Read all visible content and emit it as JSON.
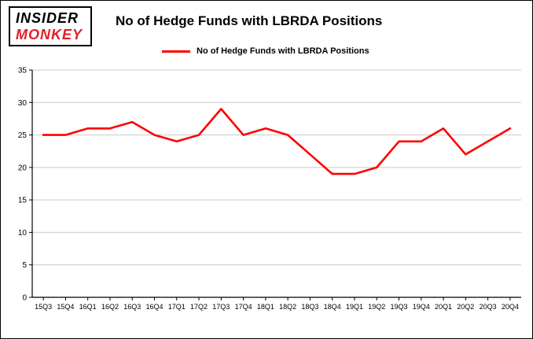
{
  "logo": {
    "line1": "INSIDER",
    "line2": "MONKEY"
  },
  "title": "No of Hedge Funds with LBRDA Positions",
  "colors": {
    "line": "#ff0000",
    "grid": "#c9c9c9",
    "axis": "#000000",
    "logo_accent": "#e31e25"
  },
  "chart_data": {
    "type": "line",
    "title": "No of Hedge Funds with LBRDA Positions",
    "categories": [
      "15Q3",
      "15Q4",
      "16Q1",
      "16Q2",
      "16Q3",
      "16Q4",
      "17Q1",
      "17Q2",
      "17Q3",
      "17Q4",
      "18Q1",
      "18Q2",
      "18Q3",
      "18Q4",
      "19Q1",
      "19Q2",
      "19Q3",
      "19Q4",
      "20Q1",
      "20Q2",
      "20Q3",
      "20Q4"
    ],
    "series": [
      {
        "name": "No of Hedge Funds with LBRDA Positions",
        "values": [
          25,
          25,
          26,
          26,
          27,
          25,
          24,
          25,
          29,
          25,
          26,
          25,
          22,
          19,
          19,
          20,
          24,
          24,
          26,
          22,
          24,
          26
        ]
      }
    ],
    "xlabel": "",
    "ylabel": "",
    "ylim": [
      0,
      35
    ],
    "ytick_step": 5,
    "yticks": [
      0,
      5,
      10,
      15,
      20,
      25,
      30,
      35
    ],
    "grid": true,
    "legend_position": "top"
  }
}
